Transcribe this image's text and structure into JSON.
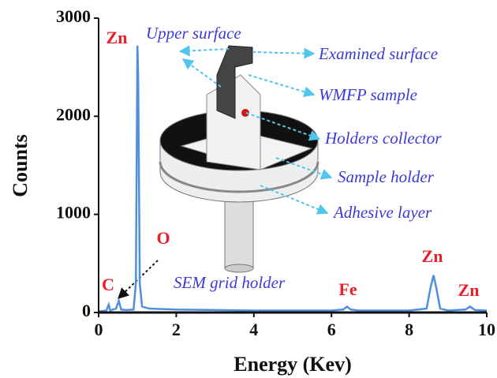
{
  "chart_data": {
    "type": "line",
    "x_label": "Energy (Kev)",
    "y_label": "Counts",
    "x": [
      0,
      0.2,
      0.26,
      0.3,
      0.36,
      0.45,
      0.52,
      0.58,
      0.7,
      0.9,
      0.96,
      1.0,
      1.02,
      1.06,
      1.12,
      1.3,
      2,
      3,
      4,
      5,
      6,
      6.3,
      6.4,
      6.5,
      6.7,
      7,
      8,
      8.45,
      8.55,
      8.63,
      8.7,
      8.8,
      9,
      9.45,
      9.57,
      9.7,
      10
    ],
    "series": [
      {
        "color": "#4f8fe0",
        "values": [
          10,
          20,
          80,
          20,
          30,
          40,
          120,
          30,
          25,
          30,
          300,
          2720,
          2400,
          300,
          60,
          40,
          30,
          25,
          20,
          20,
          20,
          30,
          60,
          30,
          20,
          20,
          20,
          40,
          250,
          380,
          250,
          40,
          20,
          30,
          60,
          25,
          20
        ]
      }
    ],
    "xlim": [
      0,
      10
    ],
    "xticks": [
      0,
      2,
      4,
      6,
      8,
      10
    ],
    "ylim": [
      0,
      3000
    ],
    "yticks": [
      0,
      1000,
      2000,
      3000
    ],
    "peak_labels": [
      "Zn",
      "O",
      "C",
      "Fe",
      "Zn",
      "Zn"
    ],
    "inset_labels": [
      "Upper surface",
      "Examined surface",
      "WMFP sample",
      "Holders collector",
      "Sample holder",
      "Adhesive layer",
      "SEM grid holder"
    ]
  }
}
